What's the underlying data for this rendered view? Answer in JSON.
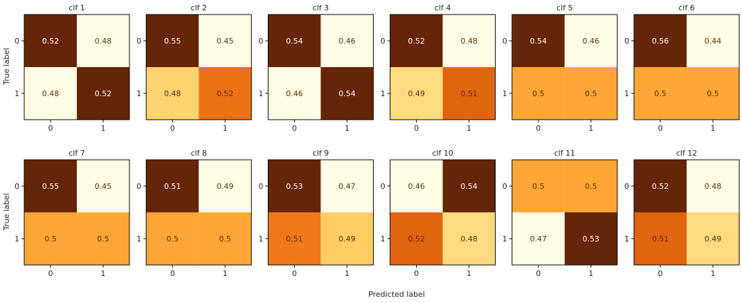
{
  "chart_data": {
    "type": "heatmap",
    "xlabel": "Predicted label",
    "ylabel": "True label",
    "tick_labels": [
      "0",
      "1"
    ],
    "colormap": "YlOrBr",
    "grid": false,
    "panels": [
      {
        "title": "clf 1",
        "matrix": [
          [
            0.52,
            0.48
          ],
          [
            0.48,
            0.52
          ]
        ],
        "color_scale": [
          0.48,
          0.52
        ]
      },
      {
        "title": "clf 2",
        "matrix": [
          [
            0.55,
            0.45
          ],
          [
            0.48,
            0.52
          ]
        ],
        "color_scale": [
          0.45,
          0.55
        ]
      },
      {
        "title": "clf 3",
        "matrix": [
          [
            0.54,
            0.46
          ],
          [
            0.46,
            0.54
          ]
        ],
        "color_scale": [
          0.46,
          0.54
        ]
      },
      {
        "title": "clf 4",
        "matrix": [
          [
            0.52,
            0.48
          ],
          [
            0.49,
            0.51
          ]
        ],
        "color_scale": [
          0.48,
          0.52
        ]
      },
      {
        "title": "clf 5",
        "matrix": [
          [
            0.54,
            0.46
          ],
          [
            0.5,
            0.5
          ]
        ],
        "color_scale": [
          0.46,
          0.54
        ]
      },
      {
        "title": "clf 6",
        "matrix": [
          [
            0.56,
            0.44
          ],
          [
            0.5,
            0.5
          ]
        ],
        "color_scale": [
          0.44,
          0.56
        ]
      },
      {
        "title": "clf 7",
        "matrix": [
          [
            0.55,
            0.45
          ],
          [
            0.5,
            0.5
          ]
        ],
        "color_scale": [
          0.45,
          0.55
        ]
      },
      {
        "title": "clf 8",
        "matrix": [
          [
            0.51,
            0.49
          ],
          [
            0.5,
            0.5
          ]
        ],
        "color_scale": [
          0.49,
          0.51
        ]
      },
      {
        "title": "clf 9",
        "matrix": [
          [
            0.53,
            0.47
          ],
          [
            0.51,
            0.49
          ]
        ],
        "color_scale": [
          0.47,
          0.53
        ]
      },
      {
        "title": "clf 10",
        "matrix": [
          [
            0.46,
            0.54
          ],
          [
            0.52,
            0.48
          ]
        ],
        "color_scale": [
          0.46,
          0.54
        ]
      },
      {
        "title": "clf 11",
        "matrix": [
          [
            0.5,
            0.5
          ],
          [
            0.47,
            0.53
          ]
        ],
        "color_scale": [
          0.47,
          0.53
        ]
      },
      {
        "title": "clf 12",
        "matrix": [
          [
            0.52,
            0.48
          ],
          [
            0.51,
            0.49
          ]
        ],
        "color_scale": [
          0.48,
          0.52
        ]
      }
    ]
  }
}
